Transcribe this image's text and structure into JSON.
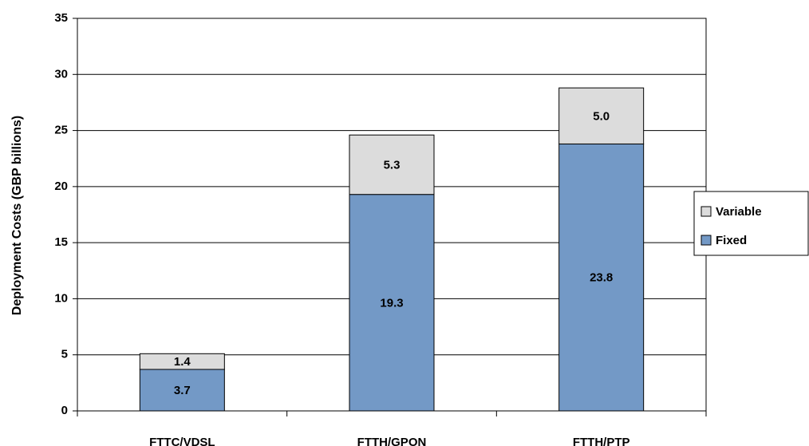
{
  "chart_data": {
    "type": "stacked_bar",
    "y_axis_label": "Deployment Costs (GBP billions)",
    "categories": [
      "FTTC/VDSL",
      "FTTH/GPON",
      "FTTH/PTP"
    ],
    "series": [
      {
        "name": "Fixed",
        "color": "#7399c6",
        "values": [
          3.7,
          19.3,
          23.8
        ],
        "value_labels": [
          "3.7",
          "19.3",
          "23.8"
        ]
      },
      {
        "name": "Variable",
        "color": "#dcdcdc",
        "values": [
          1.4,
          5.3,
          5.0
        ],
        "value_labels": [
          "1.4",
          "5.3",
          "5.0"
        ]
      }
    ],
    "ylim": [
      0,
      35
    ],
    "yticks": [
      0,
      5,
      10,
      15,
      20,
      25,
      30,
      35
    ],
    "grid": true,
    "legend": "right"
  }
}
